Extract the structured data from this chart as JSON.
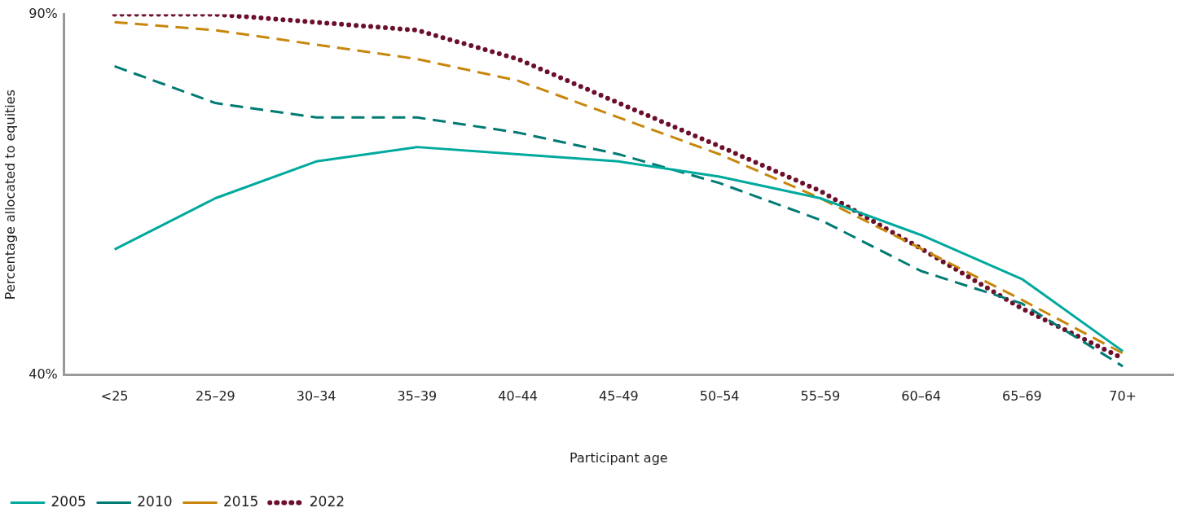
{
  "chart_data": {
    "type": "line",
    "xlabel": "Participant age",
    "ylabel": "Percentage allocated to equities",
    "categories": [
      "<25",
      "25–29",
      "30–34",
      "35–39",
      "40–44",
      "45–49",
      "50–54",
      "55–59",
      "60–64",
      "65–69",
      "70+"
    ],
    "ylim": [
      40,
      90
    ],
    "yticks": [
      {
        "value": 40,
        "label": "40%"
      },
      {
        "value": 90,
        "label": "90%"
      }
    ],
    "grid": false,
    "legend": "bottom left",
    "marker": "none",
    "series": [
      {
        "name": "2005",
        "color": "#00a99d",
        "line_style": "solid",
        "values": [
          57.4,
          64.5,
          69.6,
          71.6,
          70.6,
          69.6,
          67.5,
          64.5,
          59.4,
          53.3,
          43.3
        ]
      },
      {
        "name": "2010",
        "color": "#007a73",
        "line_style": "dashed",
        "values": [
          82.8,
          77.7,
          75.7,
          75.7,
          73.6,
          70.6,
          66.6,
          61.5,
          54.4,
          49.9,
          41.2
        ]
      },
      {
        "name": "2015",
        "color": "#c7870b",
        "line_style": "dashed",
        "values": [
          88.9,
          87.8,
          85.8,
          83.8,
          80.8,
          75.7,
          70.6,
          64.5,
          57.5,
          50.4,
          43.0
        ]
      },
      {
        "name": "2022",
        "color": "#6b0f2a",
        "line_style": "dotted",
        "values": [
          90,
          90,
          88.9,
          87.8,
          83.8,
          77.7,
          71.7,
          65.5,
          57.5,
          49.2,
          42.3
        ]
      }
    ]
  }
}
